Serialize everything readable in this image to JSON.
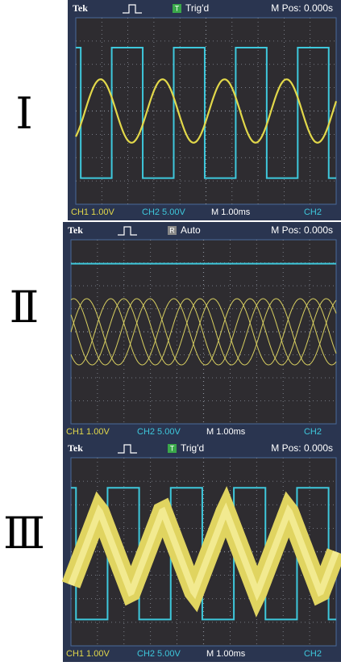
{
  "panels": [
    {
      "label": "Ⅰ",
      "brand": "Tek",
      "trigger_icon": "T",
      "trigger": "Trig'd",
      "position": "M Pos: 0.000s",
      "ch1": "CH1  1.00V",
      "ch2": "CH2  5.00V",
      "timebase": "M 1.00ms",
      "trigger_source": "CH2"
    },
    {
      "label": "Ⅱ",
      "brand": "Tek",
      "trigger_icon": "R",
      "trigger": "Auto",
      "position": "M Pos: 0.000s",
      "ch1": "CH1  1.00V",
      "ch2": "CH2  5.00V",
      "timebase": "M 1.00ms",
      "trigger_source": "CH2"
    },
    {
      "label": "Ⅲ",
      "brand": "Tek",
      "trigger_icon": "T",
      "trigger": "Trig'd",
      "position": "M Pos: 0.000s",
      "ch1": "CH1  1.00V",
      "ch2": "CH2  5.00V",
      "timebase": "M 1.00ms",
      "trigger_source": "CH2"
    }
  ]
}
